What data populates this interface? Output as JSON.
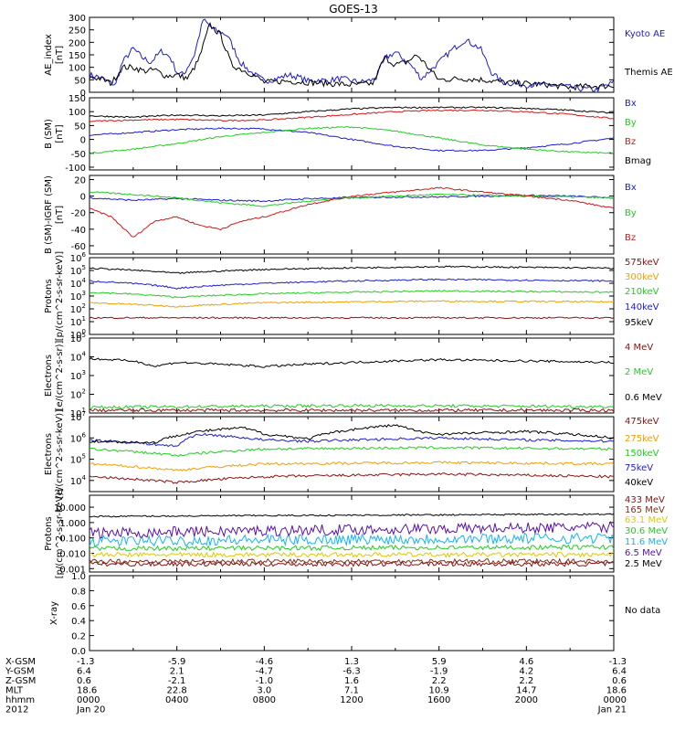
{
  "title": "GOES-13",
  "colors": {
    "black": "#000000",
    "blue": "#1c1cd0",
    "green": "#22cc22",
    "red": "#d01818",
    "darkred": "#8b1010",
    "orange": "#f0a000",
    "yellow": "#e0c800",
    "cyan": "#16b4ee",
    "purple": "#5a10b0",
    "magenta": "#a02090",
    "brown": "#803020"
  },
  "chart_data": [
    {
      "type": "line",
      "title": "AE index",
      "ylabel": "AE_index\n[nT]",
      "yticks": [
        "300",
        "250",
        "200",
        "150",
        "100",
        "50",
        "0"
      ],
      "ylim": [
        0,
        300
      ],
      "series": [
        {
          "name": "Kyoto AE",
          "color": "blue",
          "x": [
            0,
            0.5,
            0.9,
            1.2,
            1.5,
            2,
            2.4,
            2.8,
            3.3,
            3.7,
            4.0,
            4.3,
            4.8,
            5.2,
            5.7,
            6.3,
            6.9,
            7.4,
            8,
            8.6,
            9.1,
            9.6,
            10.0,
            10.5,
            10.9,
            11.4,
            11.8,
            12.4,
            13,
            13.6,
            14,
            14.6,
            15.2,
            16,
            16.6,
            17.2,
            17.9,
            18.4,
            18.9,
            19.4,
            20,
            20.8,
            21.6,
            22.4,
            23.2,
            24
          ],
          "values": [
            70,
            60,
            40,
            30,
            120,
            175,
            140,
            120,
            165,
            140,
            80,
            70,
            150,
            290,
            250,
            230,
            120,
            80,
            45,
            55,
            70,
            60,
            45,
            50,
            45,
            55,
            50,
            40,
            50,
            140,
            160,
            120,
            55,
            120,
            170,
            210,
            175,
            80,
            40,
            35,
            30,
            30,
            25,
            15,
            10,
            40
          ]
        },
        {
          "name": "Themis AE",
          "color": "black",
          "x": [
            0,
            0.5,
            1,
            1.5,
            2,
            2.5,
            3,
            3.5,
            4,
            4.5,
            5,
            5.5,
            6,
            6.5,
            7,
            7.5,
            8,
            9,
            10,
            11,
            12,
            13,
            13.5,
            14,
            14.5,
            15,
            15.5,
            16,
            17,
            18,
            19,
            20,
            21,
            22,
            23,
            24
          ],
          "values": [
            60,
            55,
            35,
            100,
            100,
            85,
            90,
            65,
            70,
            55,
            130,
            270,
            230,
            110,
            90,
            70,
            40,
            45,
            40,
            35,
            30,
            35,
            140,
            110,
            120,
            150,
            100,
            50,
            55,
            50,
            40,
            35,
            30,
            20,
            25,
            25
          ]
        }
      ]
    },
    {
      "type": "line",
      "title": "B (SM)",
      "ylabel": "B (SM)\n[nT]",
      "yticks": [
        "150",
        "100",
        "50",
        "0",
        "-50",
        "-100"
      ],
      "ylim": [
        -110,
        150
      ],
      "series": [
        {
          "name": "Bx",
          "color": "blue",
          "x": [
            0,
            2,
            4,
            6,
            8,
            10,
            12,
            14,
            16,
            18,
            20,
            22,
            24
          ],
          "values": [
            15,
            25,
            35,
            40,
            38,
            25,
            0,
            -25,
            -40,
            -40,
            -30,
            -15,
            5
          ]
        },
        {
          "name": "By",
          "color": "green",
          "x": [
            0,
            2,
            4,
            6,
            8,
            10,
            12,
            14,
            16,
            18,
            20,
            22,
            24
          ],
          "values": [
            -50,
            -35,
            -15,
            10,
            25,
            40,
            45,
            30,
            5,
            -20,
            -35,
            -45,
            -50
          ]
        },
        {
          "name": "Bz",
          "color": "red",
          "x": [
            0,
            2,
            4,
            6,
            8,
            10,
            12,
            14,
            16,
            18,
            20,
            22,
            24
          ],
          "values": [
            65,
            70,
            72,
            68,
            70,
            80,
            90,
            100,
            105,
            105,
            100,
            90,
            75
          ]
        },
        {
          "name": "Bmag",
          "color": "black",
          "x": [
            0,
            2,
            4,
            6,
            8,
            10,
            12,
            14,
            16,
            18,
            20,
            22,
            24
          ],
          "values": [
            85,
            80,
            88,
            85,
            88,
            100,
            110,
            115,
            115,
            115,
            112,
            105,
            95
          ]
        }
      ]
    },
    {
      "type": "line",
      "title": "B (SM) - IGRF (SM)",
      "ylabel": "B (SM)-IGRF (SM)\n[nT]",
      "yticks": [
        "20",
        "0",
        "-20",
        "-40",
        "-60"
      ],
      "ylim": [
        -70,
        25
      ],
      "series": [
        {
          "name": "Bx",
          "color": "blue",
          "x": [
            0,
            2,
            4,
            6,
            8,
            10,
            12,
            14,
            16,
            18,
            20,
            22,
            24
          ],
          "values": [
            -2,
            -5,
            -3,
            -5,
            -6,
            -3,
            -2,
            -1,
            -1,
            0,
            1,
            0,
            -2
          ]
        },
        {
          "name": "By",
          "color": "green",
          "x": [
            0,
            2,
            4,
            6,
            8,
            10,
            12,
            14,
            16,
            18,
            20,
            22,
            24
          ],
          "values": [
            5,
            2,
            -2,
            -8,
            -12,
            -6,
            -2,
            0,
            2,
            1,
            0,
            -1,
            -2
          ]
        },
        {
          "name": "Bz",
          "color": "red",
          "x": [
            0,
            1,
            2,
            3,
            4,
            5,
            6,
            7,
            8,
            10,
            12,
            14,
            16,
            18,
            20,
            22,
            24
          ],
          "values": [
            -15,
            -25,
            -50,
            -30,
            -25,
            -35,
            -40,
            -30,
            -25,
            -10,
            0,
            5,
            10,
            5,
            0,
            -5,
            -15
          ]
        }
      ]
    },
    {
      "type": "line",
      "title": "Protons",
      "ylabel": "Protons\n[p/(cm^2-s-sr-keV)]",
      "yscale": "log",
      "yticks": [
        "10^6",
        "10^5",
        "10^4",
        "10^3",
        "10^2",
        "10^1",
        "10^0"
      ],
      "ylim": [
        1,
        1000000
      ],
      "series": [
        {
          "name": "575keV",
          "color": "darkred",
          "x": [
            0,
            24
          ],
          "values": [
            20,
            20
          ]
        },
        {
          "name": "300keV",
          "color": "orange",
          "x": [
            0,
            4,
            8,
            16,
            24
          ],
          "values": [
            300,
            150,
            300,
            400,
            350
          ]
        },
        {
          "name": "210keV",
          "color": "green",
          "x": [
            0,
            4,
            8,
            16,
            24
          ],
          "values": [
            2000,
            800,
            1500,
            2500,
            2000
          ]
        },
        {
          "name": "140keV",
          "color": "blue",
          "x": [
            0,
            4,
            8,
            16,
            24
          ],
          "values": [
            15000,
            4000,
            10000,
            20000,
            15000
          ]
        },
        {
          "name": "95keV",
          "color": "black",
          "x": [
            0,
            4,
            8,
            16,
            24
          ],
          "values": [
            150000,
            60000,
            120000,
            200000,
            150000
          ]
        }
      ]
    },
    {
      "type": "line",
      "title": "Electrons",
      "ylabel": "Electrons\n[e/(cm^2-s-sr)]",
      "yscale": "log",
      "yticks": [
        "10^5",
        "10^4",
        "10^3",
        "10^2",
        "10^1"
      ],
      "ylim": [
        10,
        100000
      ],
      "series": [
        {
          "name": "4 MeV",
          "color": "darkred",
          "x": [
            0,
            24
          ],
          "values": [
            14,
            14
          ]
        },
        {
          "name": "2 MeV",
          "color": "green",
          "x": [
            0,
            12,
            24
          ],
          "values": [
            20,
            25,
            22
          ]
        },
        {
          "name": "0.6 MeV",
          "color": "black",
          "x": [
            0,
            2,
            3,
            4,
            8,
            12,
            16,
            20,
            24
          ],
          "values": [
            8000,
            6000,
            3000,
            5000,
            3000,
            5000,
            7000,
            6000,
            5000
          ]
        }
      ]
    },
    {
      "type": "line",
      "title": "Electrons",
      "ylabel": "Electrons\n[e/(cm^2-s-sr-keV)]",
      "yscale": "log",
      "yticks": [
        "10^7",
        "10^6",
        "10^5",
        "10^4"
      ],
      "ylim": [
        3000,
        10000000
      ],
      "series": [
        {
          "name": "475keV",
          "color": "darkred",
          "x": [
            0,
            4,
            8,
            16,
            24
          ],
          "values": [
            15000,
            8000,
            15000,
            20000,
            15000
          ]
        },
        {
          "name": "275keV",
          "color": "orange",
          "x": [
            0,
            4,
            8,
            16,
            24
          ],
          "values": [
            60000,
            30000,
            60000,
            70000,
            60000
          ]
        },
        {
          "name": "150keV",
          "color": "green",
          "x": [
            0,
            4,
            8,
            16,
            24
          ],
          "values": [
            300000,
            150000,
            300000,
            350000,
            300000
          ]
        },
        {
          "name": "75keV",
          "color": "blue",
          "x": [
            0,
            4,
            5,
            8,
            10,
            14,
            16,
            20,
            24
          ],
          "values": [
            800000,
            400000,
            1500000,
            800000,
            700000,
            900000,
            1000000,
            800000,
            700000
          ]
        },
        {
          "name": "40keV",
          "color": "black",
          "x": [
            0,
            3,
            5,
            7,
            8,
            10,
            14,
            15,
            16,
            20,
            24
          ],
          "values": [
            700000,
            600000,
            2000000,
            3000000,
            1500000,
            900000,
            4000000,
            2000000,
            1500000,
            2000000,
            1000000
          ]
        }
      ]
    },
    {
      "type": "line",
      "title": "Protons",
      "ylabel": "Protons\n[p/(cm^2-s-sr-keV)]",
      "yscale": "log",
      "yticks": [
        "10.000",
        "1.000",
        "0.100",
        "0.010",
        "0.001"
      ],
      "ylim": [
        0.0006,
        60
      ],
      "series": [
        {
          "name": "433 MeV",
          "color": "darkred",
          "x": [
            0,
            24
          ],
          "values": [
            0.002,
            0.002
          ]
        },
        {
          "name": "165 MeV",
          "color": "brown",
          "x": [
            0,
            24
          ],
          "values": [
            0.003,
            0.003
          ]
        },
        {
          "name": "63.1 MeV",
          "color": "yellow",
          "x": [
            0,
            24
          ],
          "values": [
            0.008,
            0.008
          ]
        },
        {
          "name": "30.6 MeV",
          "color": "green",
          "x": [
            0,
            24
          ],
          "values": [
            0.02,
            0.025
          ]
        },
        {
          "name": "11.6 MeV",
          "color": "cyan",
          "x": [
            0,
            24
          ],
          "values": [
            0.06,
            0.1
          ]
        },
        {
          "name": "6.5 MeV",
          "color": "purple",
          "x": [
            0,
            24
          ],
          "values": [
            0.2,
            0.5
          ]
        },
        {
          "name": "2.5 MeV",
          "color": "black",
          "x": [
            0,
            24
          ],
          "values": [
            2.5,
            3.5
          ]
        }
      ]
    },
    {
      "type": "line",
      "title": "X-ray",
      "ylabel": "X-ray",
      "yticks": [
        "1.0",
        "0.8",
        "0.6",
        "0.4",
        "0.2",
        "0.0"
      ],
      "ylim": [
        0,
        1
      ],
      "series": [],
      "note": "No data"
    }
  ],
  "ephemeris": {
    "rows": [
      {
        "label": "X-GSM",
        "values": [
          "-1.3",
          "-5.9",
          "-4.6",
          "1.3",
          "5.9",
          "4.6",
          "-1.3"
        ]
      },
      {
        "label": "Y-GSM",
        "values": [
          "6.4",
          "2.1",
          "-4.7",
          "-6.3",
          "-1.9",
          "4.2",
          "6.4"
        ]
      },
      {
        "label": "Z-GSM",
        "values": [
          "0.6",
          "-2.1",
          "-1.0",
          "1.6",
          "2.2",
          "2.2",
          "0.6"
        ]
      },
      {
        "label": "MLT",
        "values": [
          "18.6",
          "22.8",
          "3.0",
          "7.1",
          "10.9",
          "14.7",
          "18.6"
        ]
      },
      {
        "label": "hhmm",
        "values": [
          "0000",
          "0400",
          "0800",
          "1200",
          "1600",
          "2000",
          "0000"
        ]
      },
      {
        "label": "2012",
        "values": [
          "Jan 20",
          "",
          "",
          "",
          "",
          "",
          "Jan 21"
        ]
      }
    ]
  }
}
